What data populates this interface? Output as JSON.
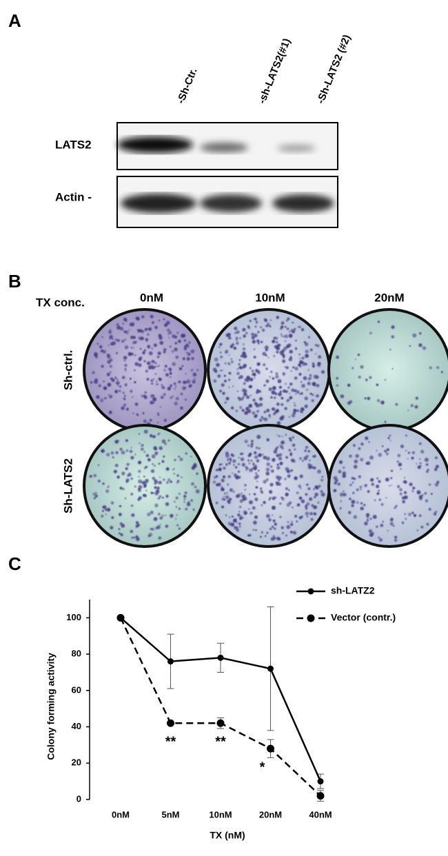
{
  "panel_a": {
    "label": "A",
    "lanes": [
      "-Sh-Ctr.",
      "-sh-LATS2(#1)",
      "-Sh-LATS2 (#2)"
    ],
    "rows": [
      "LATS2",
      "Actin -"
    ]
  },
  "panel_b": {
    "label": "B",
    "row_header": "TX conc.",
    "columns": [
      "0nM",
      "10nM",
      "20nM"
    ],
    "rows": [
      "Sh-ctrl.",
      "Sh-LATS2"
    ]
  },
  "panel_c": {
    "label": "C"
  },
  "chart_data": {
    "type": "line",
    "x_label": "TX (nM)",
    "y_label": "Colony forming activity",
    "categories": [
      "0nM",
      "5nM",
      "10nM",
      "20nM",
      "40nM"
    ],
    "series": [
      {
        "name": "sh-LATZ2",
        "color": "#000000",
        "style": "solid",
        "values": [
          100,
          76,
          78,
          72,
          10
        ],
        "errors": [
          null,
          15,
          8,
          34,
          4
        ]
      },
      {
        "name": "Vector (contr.)",
        "color": "#000000",
        "style": "dashed",
        "values": [
          100,
          42,
          42,
          28,
          2
        ],
        "errors": [
          null,
          null,
          3,
          5,
          3
        ]
      }
    ],
    "significance": [
      null,
      "**",
      "**",
      "*",
      null
    ],
    "ylim": [
      0,
      110
    ],
    "yticks": [
      0,
      20,
      40,
      60,
      80,
      100
    ],
    "legend": "top-right"
  }
}
